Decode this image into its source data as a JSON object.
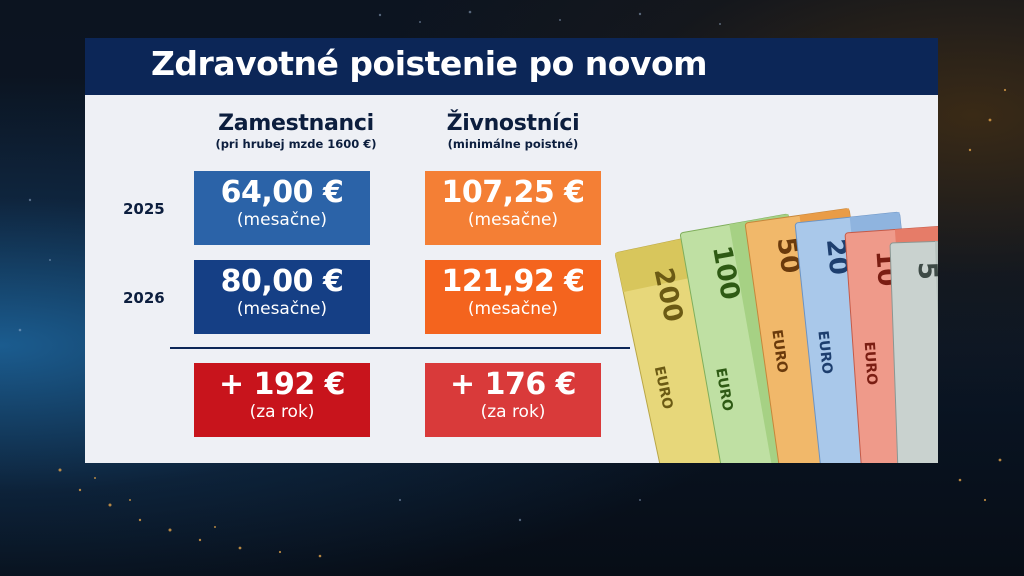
{
  "title": "Zdravotné poistenie po novom",
  "columns": [
    {
      "heading": "Zamestnanci",
      "subheading": "(pri hrubej mzde 1600 €)"
    },
    {
      "heading": "Živnostníci",
      "subheading": "(minimálne poistné)"
    }
  ],
  "rows": [
    {
      "year": "2025",
      "employee": {
        "value": "64,00 €",
        "unit": "(mesačne)"
      },
      "selfemployed": {
        "value": "107,25 €",
        "unit": "(mesačne)"
      }
    },
    {
      "year": "2026",
      "employee": {
        "value": "80,00 €",
        "unit": "(mesačne)"
      },
      "selfemployed": {
        "value": "121,92 €",
        "unit": "(mesačne)"
      }
    }
  ],
  "difference": {
    "employee": {
      "value": "+ 192 €",
      "unit": "(za rok)"
    },
    "selfemployed": {
      "value": "+ 176 €",
      "unit": "(za rok)"
    }
  },
  "banknotes": [
    "200",
    "100",
    "50",
    "20",
    "10",
    "5"
  ],
  "banknote_word": "EURO",
  "colors": {
    "title_bar": "#0c2657",
    "employee_2025": "#2b63a8",
    "employee_2026": "#153f85",
    "selfemployed_2025": "#f47f35",
    "selfemployed_2026": "#f4641e",
    "diff_employee": "#c8141c",
    "diff_selfemployed": "#d93a3a"
  }
}
